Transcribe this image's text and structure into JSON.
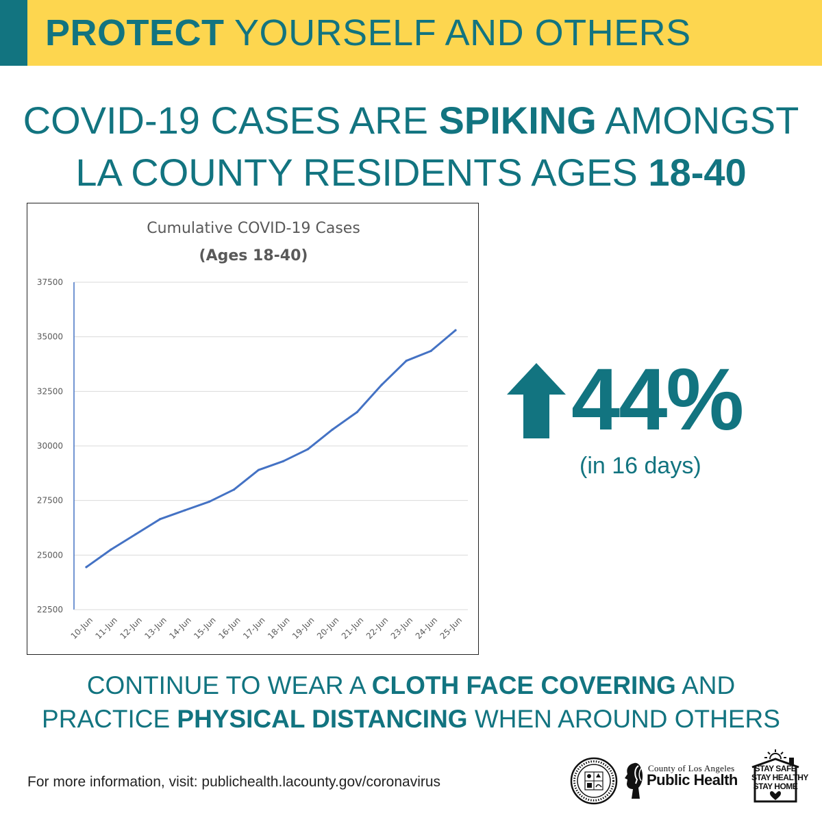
{
  "banner": {
    "title_bold": "PROTECT",
    "title_rest": " YOURSELF AND OTHERS"
  },
  "headline": {
    "l1_a": "COVID-19 CASES ARE ",
    "l1_b": "SPIKING",
    "l1_c": " AMONGST",
    "l2_a": "LA COUNTY RESIDENTS AGES ",
    "l2_b": "18-40"
  },
  "stat": {
    "value": "44%",
    "caption": "(in 16 days)"
  },
  "cta": {
    "l1_a": "CONTINUE TO WEAR A ",
    "l1_b": "CLOTH FACE COVERING",
    "l1_c": " AND",
    "l2_a": "PRACTICE ",
    "l2_b": "PHYSICAL DISTANCING",
    "l2_c": " WHEN AROUND OTHERS"
  },
  "footer": {
    "info": "For more information, visit: publichealth.lacounty.gov/coronavirus",
    "logo_small": "County of Los Angeles",
    "logo_big": "Public Health",
    "stay_1": "STAY SAFE",
    "stay_2": "STAY HEALTHY",
    "stay_3": "STAY HOME"
  },
  "colors": {
    "teal": "#127480",
    "yellow": "#FDD64F",
    "line": "#4472C4",
    "grid": "#D9D9D9"
  },
  "chart_data": {
    "type": "line",
    "title": "Cumulative COVID-19 Cases",
    "subtitle": "(Ages 18-40)",
    "categories": [
      "10-Jun",
      "11-Jun",
      "12-Jun",
      "13-Jun",
      "14-Jun",
      "15-Jun",
      "16-Jun",
      "17-Jun",
      "18-Jun",
      "19-Jun",
      "20-Jun",
      "21-Jun",
      "22-Jun",
      "23-Jun",
      "24-Jun",
      "25-Jun"
    ],
    "series": [
      {
        "values": [
          24450,
          25250,
          25950,
          26650,
          27050,
          27450,
          28000,
          28900,
          29300,
          29850,
          30750,
          31550,
          32800,
          33900,
          34350,
          35300
        ]
      }
    ],
    "ylim": [
      22500,
      37500
    ],
    "yticks": [
      22500,
      25000,
      27500,
      30000,
      32500,
      35000,
      37500
    ],
    "grid": true,
    "legend": "none"
  }
}
